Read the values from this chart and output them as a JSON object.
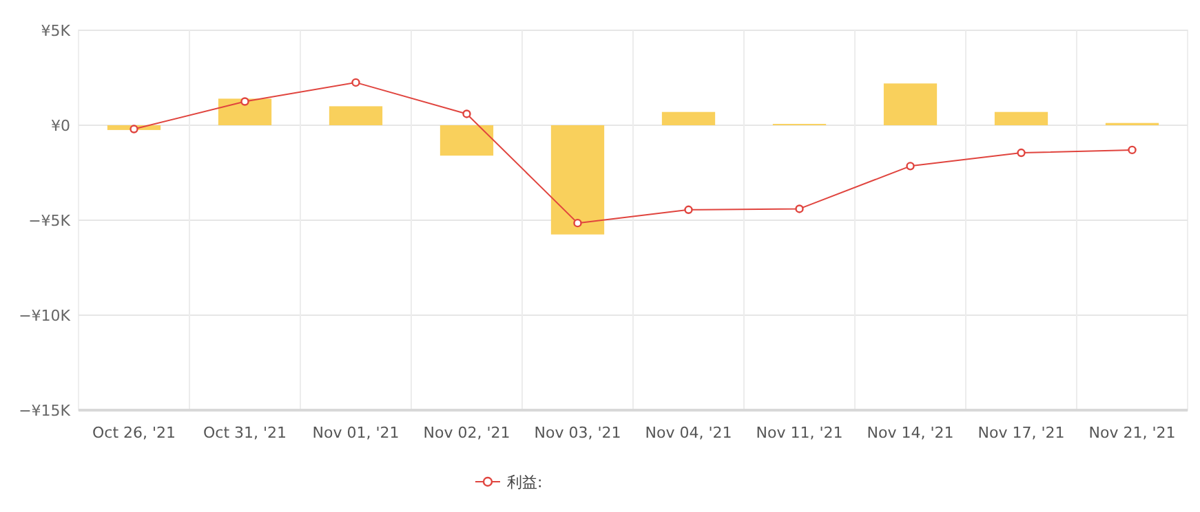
{
  "chart_data": {
    "type": "bar",
    "categories": [
      "Oct 26, '21",
      "Oct 31, '21",
      "Nov 01, '21",
      "Nov 02, '21",
      "Nov 03, '21",
      "Nov 04, '21",
      "Nov 11, '21",
      "Nov 14, '21",
      "Nov 17, '21",
      "Nov 21, '21"
    ],
    "series": [
      {
        "color": "#f9d05c",
        "values": [
          -0.25,
          1.4,
          1.0,
          -1.6,
          -5.75,
          0.7,
          0.07,
          2.2,
          0.7,
          0.12
        ]
      },
      {
        "type": "line",
        "name": "利益:",
        "color": "#e0443e",
        "marker": "circle",
        "values": [
          -0.2,
          1.25,
          2.25,
          0.6,
          -5.15,
          -4.45,
          -4.4,
          -2.15,
          -1.45,
          -1.3
        ]
      }
    ],
    "ylim": [
      -15,
      5
    ],
    "yticks": [
      {
        "value": -15,
        "label": "−¥15K"
      },
      {
        "value": -10,
        "label": "−¥10K"
      },
      {
        "value": -5,
        "label": "−¥5K"
      },
      {
        "value": 0,
        "label": "¥0"
      },
      {
        "value": 5,
        "label": "¥5K"
      }
    ],
    "grid": true,
    "legend": "bottom"
  }
}
